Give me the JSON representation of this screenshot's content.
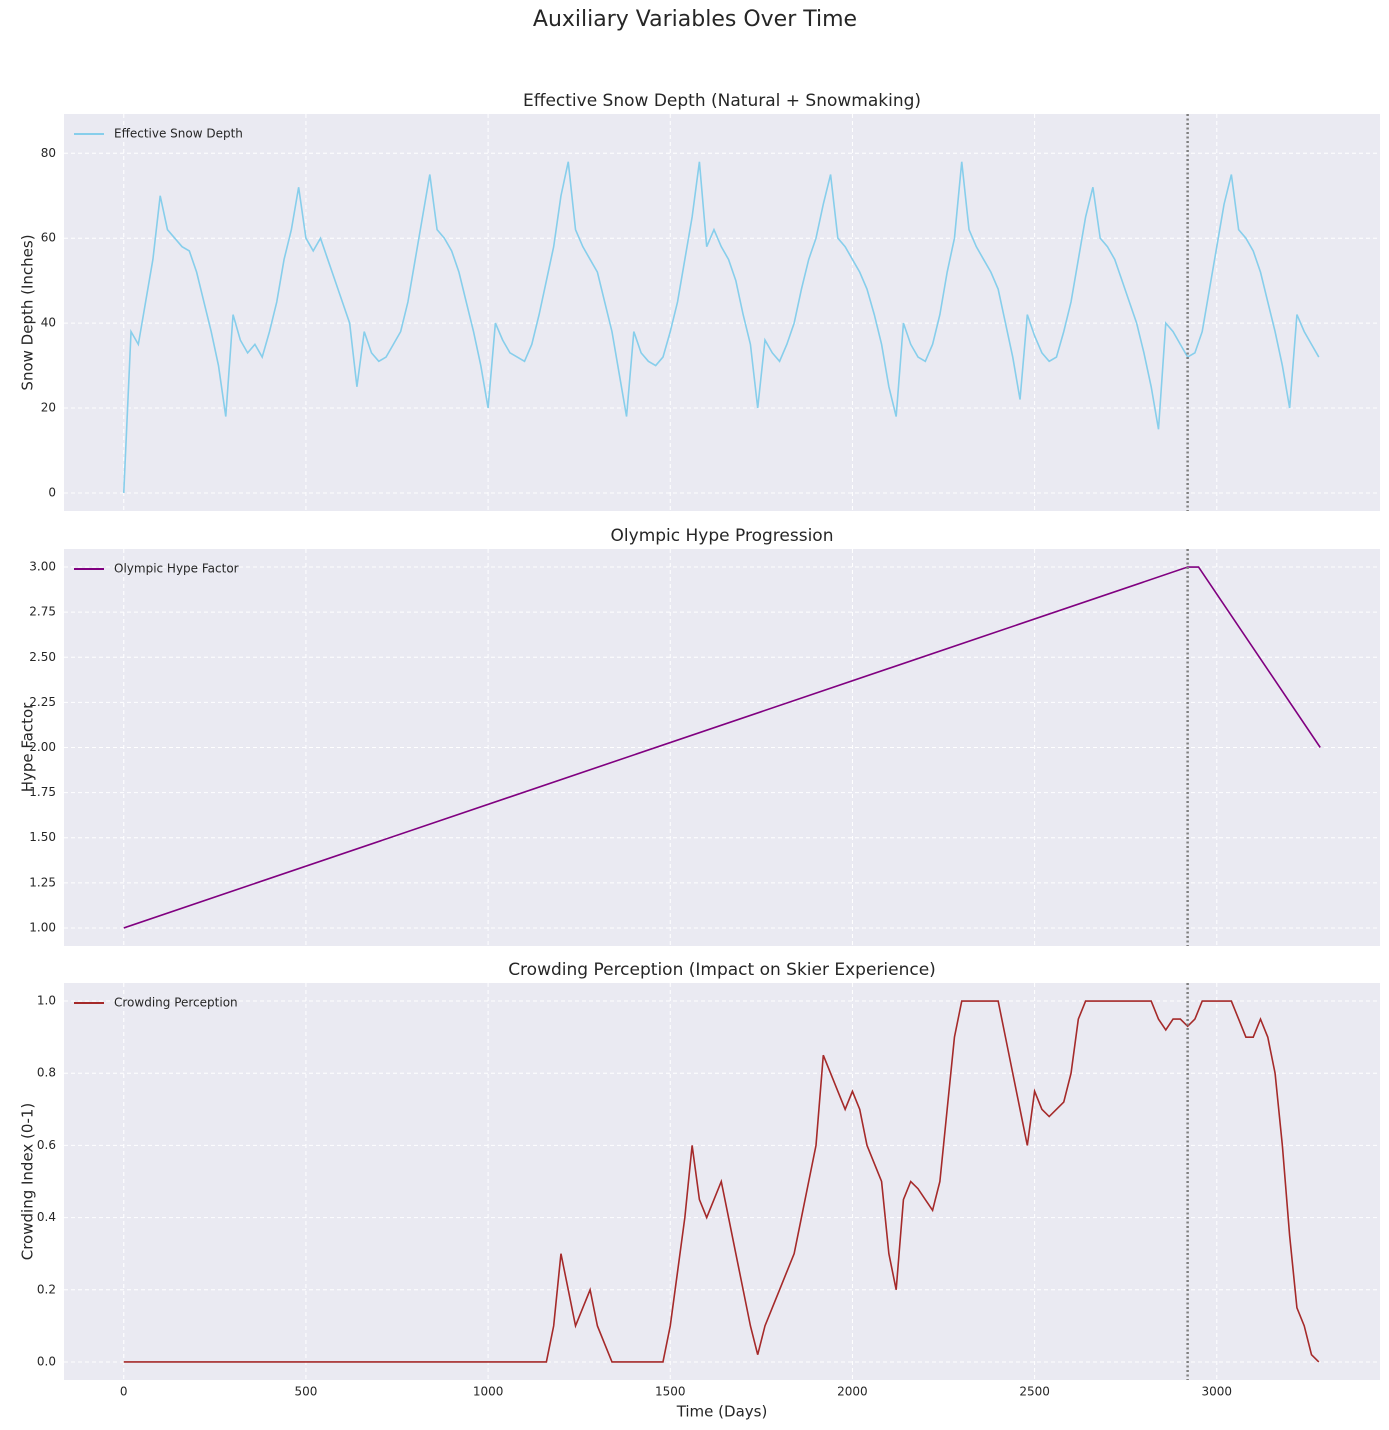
{
  "title": "Auxiliary Variables Over Time",
  "chart_data": [
    {
      "type": "line",
      "title": "Effective Snow Depth (Natural + Snowmaking)",
      "ylabel": "Snow Depth (Inches)",
      "x": [
        0,
        20,
        40,
        60,
        80,
        100,
        120,
        140,
        160,
        180,
        200,
        220,
        240,
        260,
        280,
        300,
        320,
        340,
        360,
        380,
        400,
        420,
        440,
        460,
        480,
        500,
        520,
        540,
        560,
        580,
        600,
        620,
        640,
        660,
        680,
        700,
        720,
        740,
        760,
        780,
        800,
        820,
        840,
        860,
        880,
        900,
        920,
        940,
        960,
        980,
        1000,
        1020,
        1040,
        1060,
        1080,
        1100,
        1120,
        1140,
        1160,
        1180,
        1200,
        1220,
        1240,
        1260,
        1280,
        1300,
        1320,
        1340,
        1360,
        1380,
        1400,
        1420,
        1440,
        1460,
        1480,
        1500,
        1520,
        1540,
        1560,
        1580,
        1600,
        1620,
        1640,
        1660,
        1680,
        1700,
        1720,
        1740,
        1760,
        1780,
        1800,
        1820,
        1840,
        1860,
        1880,
        1900,
        1920,
        1940,
        1960,
        1980,
        2000,
        2020,
        2040,
        2060,
        2080,
        2100,
        2120,
        2140,
        2160,
        2180,
        2200,
        2220,
        2240,
        2260,
        2280,
        2300,
        2320,
        2340,
        2360,
        2380,
        2400,
        2420,
        2440,
        2460,
        2480,
        2500,
        2520,
        2540,
        2560,
        2580,
        2600,
        2620,
        2640,
        2660,
        2680,
        2700,
        2720,
        2740,
        2760,
        2780,
        2800,
        2820,
        2840,
        2860,
        2880,
        2900,
        2920,
        2940,
        2960,
        2980,
        3000,
        3020,
        3040,
        3060,
        3080,
        3100,
        3120,
        3140,
        3160,
        3180,
        3200,
        3220,
        3240,
        3260,
        3280
      ],
      "series": [
        {
          "name": "Effective Snow Depth",
          "color": "#87ceeb",
          "values": [
            0,
            38,
            35,
            45,
            55,
            70,
            62,
            60,
            58,
            57,
            52,
            45,
            38,
            30,
            18,
            42,
            36,
            33,
            35,
            32,
            38,
            45,
            55,
            62,
            72,
            60,
            57,
            60,
            55,
            50,
            45,
            40,
            25,
            38,
            33,
            31,
            32,
            35,
            38,
            45,
            55,
            65,
            75,
            62,
            60,
            57,
            52,
            45,
            38,
            30,
            20,
            40,
            36,
            33,
            32,
            31,
            35,
            42,
            50,
            58,
            70,
            78,
            62,
            58,
            55,
            52,
            45,
            38,
            28,
            18,
            38,
            33,
            31,
            30,
            32,
            38,
            45,
            55,
            65,
            78,
            58,
            62,
            58,
            55,
            50,
            42,
            35,
            20,
            36,
            33,
            31,
            35,
            40,
            48,
            55,
            60,
            68,
            75,
            60,
            58,
            55,
            52,
            48,
            42,
            35,
            25,
            18,
            40,
            35,
            32,
            31,
            35,
            42,
            52,
            60,
            78,
            62,
            58,
            55,
            52,
            48,
            40,
            32,
            22,
            42,
            37,
            33,
            31,
            32,
            38,
            45,
            55,
            65,
            72,
            60,
            58,
            55,
            50,
            45,
            40,
            33,
            25,
            15,
            40,
            38,
            35,
            32,
            33,
            38,
            48,
            58,
            68,
            75,
            62,
            60,
            57,
            52,
            45,
            38,
            30,
            20,
            42,
            38,
            35,
            32
          ]
        }
      ],
      "xlim": [
        -164,
        3448
      ],
      "xticks": [
        0,
        500,
        1000,
        1500,
        2000,
        2500,
        3000
      ],
      "ylim": [
        -4.25,
        89.25
      ],
      "yticks": [
        0,
        20,
        40,
        60,
        80
      ],
      "vline": 2920,
      "grid": true,
      "legend": "upper left"
    },
    {
      "type": "line",
      "title": "Olympic Hype Progression",
      "ylabel": "Hype Factor",
      "x": [
        0,
        2920,
        2950,
        3284
      ],
      "series": [
        {
          "name": "Olympic Hype Factor",
          "color": "#800080",
          "values": [
            1,
            3,
            3,
            2
          ]
        }
      ],
      "xlim": [
        -164,
        3448
      ],
      "xticks": [
        0,
        500,
        1000,
        1500,
        2000,
        2500,
        3000
      ],
      "ylim": [
        0.9,
        3.1
      ],
      "yticks": [
        {
          "value": 1,
          "label": "1.00"
        },
        1.25,
        {
          "value": 1.5,
          "label": "1.50"
        },
        1.75,
        {
          "value": 2,
          "label": "2.00"
        },
        2.25,
        {
          "value": 2.5,
          "label": "2.50"
        },
        2.75,
        {
          "value": 3,
          "label": "3.00"
        }
      ],
      "vline": 2920,
      "grid": true,
      "legend": "upper left"
    },
    {
      "type": "line",
      "title": "Crowding Perception (Impact on Skier Experience)",
      "ylabel": "Crowding Index (0-1)",
      "xlabel": "Time (Days)",
      "x": [
        0,
        20,
        40,
        60,
        80,
        100,
        120,
        140,
        160,
        180,
        200,
        220,
        240,
        260,
        280,
        300,
        320,
        340,
        360,
        380,
        400,
        420,
        440,
        460,
        480,
        500,
        520,
        540,
        560,
        580,
        600,
        620,
        640,
        660,
        680,
        700,
        720,
        740,
        760,
        780,
        800,
        820,
        840,
        860,
        880,
        900,
        920,
        940,
        960,
        980,
        1000,
        1020,
        1040,
        1060,
        1080,
        1100,
        1120,
        1140,
        1160,
        1180,
        1200,
        1220,
        1240,
        1260,
        1280,
        1300,
        1320,
        1340,
        1360,
        1380,
        1400,
        1420,
        1440,
        1460,
        1480,
        1500,
        1520,
        1540,
        1560,
        1580,
        1600,
        1620,
        1640,
        1660,
        1680,
        1700,
        1720,
        1740,
        1760,
        1780,
        1800,
        1820,
        1840,
        1860,
        1880,
        1900,
        1920,
        1940,
        1960,
        1980,
        2000,
        2020,
        2040,
        2060,
        2080,
        2100,
        2120,
        2140,
        2160,
        2180,
        2200,
        2220,
        2240,
        2260,
        2280,
        2300,
        2320,
        2340,
        2360,
        2380,
        2400,
        2420,
        2440,
        2460,
        2480,
        2500,
        2520,
        2540,
        2560,
        2580,
        2600,
        2620,
        2640,
        2660,
        2680,
        2700,
        2720,
        2740,
        2760,
        2780,
        2800,
        2820,
        2840,
        2860,
        2880,
        2900,
        2920,
        2940,
        2960,
        2980,
        3000,
        3020,
        3040,
        3060,
        3080,
        3100,
        3120,
        3140,
        3160,
        3180,
        3200,
        3220,
        3240,
        3260,
        3280
      ],
      "series": [
        {
          "name": "Crowding Perception",
          "color": "#a52a2a",
          "values": [
            0,
            0,
            0,
            0,
            0,
            0,
            0,
            0,
            0,
            0,
            0,
            0,
            0,
            0,
            0,
            0,
            0,
            0,
            0,
            0,
            0,
            0,
            0,
            0,
            0,
            0,
            0,
            0,
            0,
            0,
            0,
            0,
            0,
            0,
            0,
            0,
            0,
            0,
            0,
            0,
            0,
            0,
            0,
            0,
            0,
            0,
            0,
            0,
            0,
            0,
            0,
            0,
            0,
            0,
            0,
            0,
            0,
            0,
            0,
            0.1,
            0.3,
            0.2,
            0.1,
            0.15,
            0.2,
            0.1,
            0.05,
            0,
            0,
            0,
            0,
            0,
            0,
            0,
            0,
            0.1,
            0.25,
            0.4,
            0.6,
            0.45,
            0.4,
            0.45,
            0.5,
            0.4,
            0.3,
            0.2,
            0.1,
            0.02,
            0.1,
            0.15,
            0.2,
            0.25,
            0.3,
            0.4,
            0.5,
            0.6,
            0.85,
            0.8,
            0.75,
            0.7,
            0.75,
            0.7,
            0.6,
            0.55,
            0.5,
            0.3,
            0.2,
            0.45,
            0.5,
            0.48,
            0.45,
            0.42,
            0.5,
            0.7,
            0.9,
            1,
            1,
            1,
            1,
            1,
            1,
            0.9,
            0.8,
            0.7,
            0.6,
            0.75,
            0.7,
            0.68,
            0.7,
            0.72,
            0.8,
            0.95,
            1,
            1,
            1,
            1,
            1,
            1,
            1,
            1,
            1,
            1,
            0.95,
            0.92,
            0.95,
            0.95,
            0.93,
            0.95,
            1,
            1,
            1,
            1,
            1,
            0.95,
            0.9,
            0.9,
            0.95,
            0.9,
            0.8,
            0.6,
            0.35,
            0.15,
            0.1,
            0.02,
            0
          ]
        }
      ],
      "xlim": [
        -164,
        3448
      ],
      "xticks": [
        0,
        500,
        1000,
        1500,
        2000,
        2500,
        3000
      ],
      "ylim": [
        -0.05,
        1.05
      ],
      "yticks": [
        {
          "value": 0,
          "label": "0.0"
        },
        0.2,
        0.4,
        0.6,
        0.8,
        {
          "value": 1,
          "label": "1.0"
        }
      ],
      "vline": 2920,
      "grid": true,
      "legend": "upper left"
    }
  ]
}
